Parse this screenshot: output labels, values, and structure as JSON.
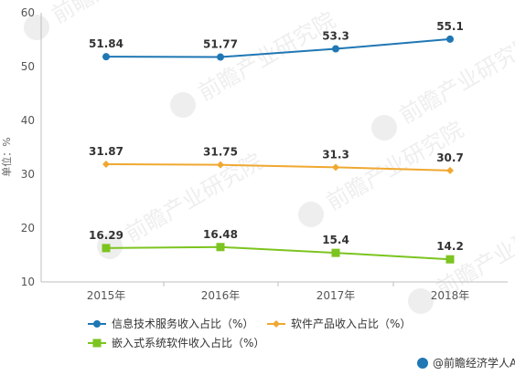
{
  "chart_data": {
    "type": "line",
    "categories": [
      "2015年",
      "2016年",
      "2017年",
      "2018年"
    ],
    "series": [
      {
        "name": "信息技术服务收入占比（%）",
        "values": [
          51.84,
          51.77,
          53.3,
          55.1
        ],
        "labels": [
          "51.84",
          "51.77",
          "53.3",
          "55.1"
        ],
        "color": "#1f77b4",
        "marker": "circle"
      },
      {
        "name": "软件产品收入占比（%）",
        "values": [
          31.87,
          31.75,
          31.3,
          30.7
        ],
        "labels": [
          "31.87",
          "31.75",
          "31.3",
          "30.7"
        ],
        "color": "#f0a830",
        "marker": "diamond"
      },
      {
        "name": "嵌入式系统软件收入占比（%）",
        "values": [
          16.29,
          16.48,
          15.4,
          14.2
        ],
        "labels": [
          "16.29",
          "16.48",
          "15.4",
          "14.2"
        ],
        "color": "#7cc41f",
        "marker": "square"
      }
    ],
    "ylabel": "单位：%",
    "ylim": [
      10,
      60
    ],
    "yticks": [
      "10",
      "20",
      "30",
      "40",
      "50",
      "60"
    ],
    "grid": false,
    "legend_position": "bottom"
  },
  "watermark": {
    "brand_text": "前瞻产业研究院"
  },
  "footer": {
    "source_text": "@前瞻经济学人APP"
  }
}
